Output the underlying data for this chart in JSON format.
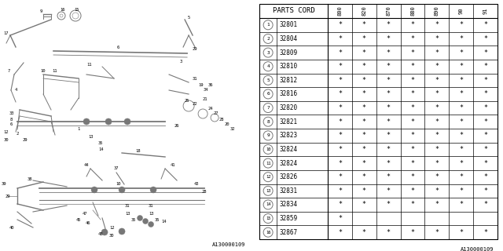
{
  "title": "PARTS CORD",
  "col_headers": [
    "800",
    "820",
    "870",
    "880",
    "890",
    "90",
    "91"
  ],
  "parts": [
    {
      "num": 1,
      "code": "32801",
      "stars": [
        1,
        1,
        1,
        1,
        1,
        1,
        1
      ]
    },
    {
      "num": 2,
      "code": "32804",
      "stars": [
        1,
        1,
        1,
        1,
        1,
        1,
        1
      ]
    },
    {
      "num": 3,
      "code": "32809",
      "stars": [
        1,
        1,
        1,
        1,
        1,
        1,
        1
      ]
    },
    {
      "num": 4,
      "code": "32810",
      "stars": [
        1,
        1,
        1,
        1,
        1,
        1,
        1
      ]
    },
    {
      "num": 5,
      "code": "32812",
      "stars": [
        1,
        1,
        1,
        1,
        1,
        1,
        1
      ]
    },
    {
      "num": 6,
      "code": "32816",
      "stars": [
        1,
        1,
        1,
        1,
        1,
        1,
        1
      ]
    },
    {
      "num": 7,
      "code": "32820",
      "stars": [
        1,
        1,
        1,
        1,
        1,
        1,
        1
      ]
    },
    {
      "num": 8,
      "code": "32821",
      "stars": [
        1,
        1,
        1,
        1,
        1,
        1,
        1
      ]
    },
    {
      "num": 9,
      "code": "32823",
      "stars": [
        1,
        1,
        1,
        1,
        1,
        1,
        1
      ]
    },
    {
      "num": 10,
      "code": "32824",
      "stars": [
        1,
        1,
        1,
        1,
        1,
        1,
        1
      ]
    },
    {
      "num": 11,
      "code": "32824",
      "stars": [
        1,
        1,
        1,
        1,
        1,
        1,
        1
      ]
    },
    {
      "num": 12,
      "code": "32826",
      "stars": [
        1,
        1,
        1,
        1,
        1,
        1,
        1
      ]
    },
    {
      "num": 13,
      "code": "32831",
      "stars": [
        1,
        1,
        1,
        1,
        1,
        1,
        1
      ]
    },
    {
      "num": 14,
      "code": "32834",
      "stars": [
        1,
        1,
        1,
        1,
        1,
        1,
        1
      ]
    },
    {
      "num": 15,
      "code": "32859",
      "stars": [
        1,
        0,
        0,
        0,
        0,
        0,
        0
      ]
    },
    {
      "num": 16,
      "code": "32867",
      "stars": [
        1,
        1,
        1,
        1,
        1,
        1,
        1
      ]
    }
  ],
  "bg_color": "#ffffff",
  "line_color": "#000000",
  "text_color": "#000000",
  "diag_color": "#777777",
  "watermark": "A130000109",
  "fig_w": 6.4,
  "fig_h": 3.2,
  "dpi": 100
}
